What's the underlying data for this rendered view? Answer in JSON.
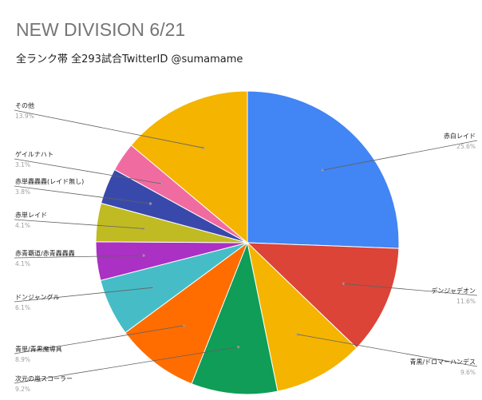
{
  "chart_data": {
    "type": "pie",
    "title": "NEW DIVISION 6/21",
    "subtitle": "全ランク帯 全293試合TwitterID @sumamame",
    "slices": [
      {
        "label": "赤白レイド",
        "value": 25.6,
        "value_label": "25.6%",
        "color": "#4285f4"
      },
      {
        "label": "デンジャデオン",
        "value": 11.6,
        "value_label": "11.6%",
        "color": "#db4437"
      },
      {
        "label": "青黒/ドロマーハンデス",
        "value": 9.6,
        "value_label": "9.6%",
        "color": "#f4b400"
      },
      {
        "label": "次元の嵐スコーラー",
        "value": 9.2,
        "value_label": "9.2%",
        "color": "#0f9d58"
      },
      {
        "label": "青単/青黒魔導具",
        "value": 8.9,
        "value_label": "8.9%",
        "color": "#ff6d00"
      },
      {
        "label": "ドンジャングル",
        "value": 6.1,
        "value_label": "6.1%",
        "color": "#46bdc6"
      },
      {
        "label": "赤青覇道/赤青轟轟轟",
        "value": 4.1,
        "value_label": "4.1%",
        "color": "#ab30c4"
      },
      {
        "label": "赤単レイド",
        "value": 4.1,
        "value_label": "4.1%",
        "color": "#c0bb22"
      },
      {
        "label": "赤単轟轟轟(レイド無し)",
        "value": 3.8,
        "value_label": "3.8%",
        "color": "#3949ab"
      },
      {
        "label": "ゲイルナハト",
        "value": 3.1,
        "value_label": "3.1%",
        "color": "#f06ba0"
      },
      {
        "label": "その他",
        "value": 13.9,
        "value_label": "13.9%",
        "color": "#f4b400"
      }
    ],
    "legend": "labels",
    "start_angle": "12 o'clock",
    "direction": "clockwise"
  }
}
